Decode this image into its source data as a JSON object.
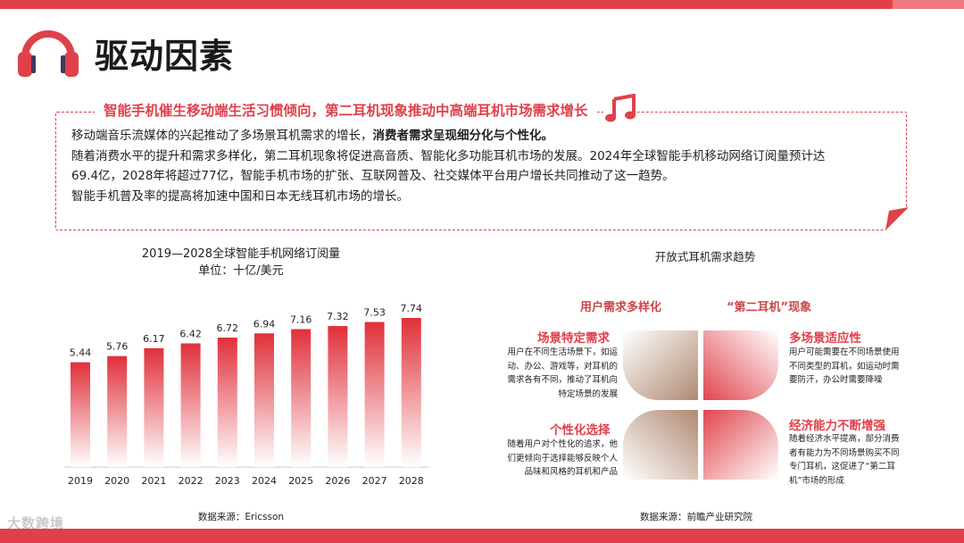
{
  "page": {
    "title": "驱动因素",
    "watermark": "大数跨境",
    "colors": {
      "accent": "#e0404a",
      "bar_top": "#e0303a",
      "bar_bottom": "#ffffff",
      "petal_brown": "#b08a72",
      "petal_red": "#e04650"
    }
  },
  "intro": {
    "heading": "智能手机催生移动端生活习惯倾向，第二耳机现象推动中高端耳机市场需求增长",
    "line1_plain": "移动端音乐流媒体的兴起推动了多场景耳机需求的增长，",
    "line1_bold": "消费者需求呈现细分化与个性化。",
    "line2": "随着消费水平的提升和需求多样化，第二耳机现象将促进高音质、智能化多功能耳机市场的发展。2024年全球智能手机移动网络订阅量预计达",
    "line3": "69.4亿，2028年将超过77亿，智能手机市场的扩张、互联网普及、社交媒体平台用户增长共同推动了这一趋势。",
    "line4": "智能手机普及率的提高将加速中国和日本无线耳机市场的增长。"
  },
  "chart_data": {
    "type": "bar",
    "title": "2019—2028全球智能手机网络订阅量",
    "subtitle": "单位：十亿/美元",
    "categories": [
      "2019",
      "2020",
      "2021",
      "2022",
      "2023",
      "2024",
      "2025",
      "2026",
      "2027",
      "2028"
    ],
    "values": [
      5.44,
      5.76,
      6.17,
      6.42,
      6.72,
      6.94,
      7.16,
      7.32,
      7.53,
      7.74
    ],
    "ylim": [
      0,
      7.74
    ],
    "grid": false,
    "source": "数据来源：Ericsson"
  },
  "trends": {
    "title": "开放式耳机需求趋势",
    "group_left": "用户需求多样化",
    "group_right": "“第二耳机”现象",
    "scene": {
      "title": "场景特定需求",
      "lines": [
        "用户在不同生活场景下，如运",
        "动、办公、游戏等，对耳机的",
        "需求各有不同，推动了耳机向",
        "特定场景的发展"
      ]
    },
    "personal": {
      "title": "个性化选择",
      "lines": [
        "随着用户对个性化的追求，他",
        "们更倾向于选择能够反映个人",
        "品味和风格的耳机和产品"
      ]
    },
    "multi": {
      "title": "多场景适应性",
      "lines": [
        "用户可能需要在不同场景使用",
        "不同类型的耳机，如运动时需",
        "要防汗，办公时需要降噪"
      ]
    },
    "economy": {
      "title": "经济能力不断增强",
      "lines": [
        "随着经济水平提高，部分消费",
        "者有能力为不同场景购买不同",
        "专门耳机，这促进了“第二耳",
        "机”市场的形成"
      ]
    },
    "source": "数据来源：前瞻产业研究院"
  }
}
